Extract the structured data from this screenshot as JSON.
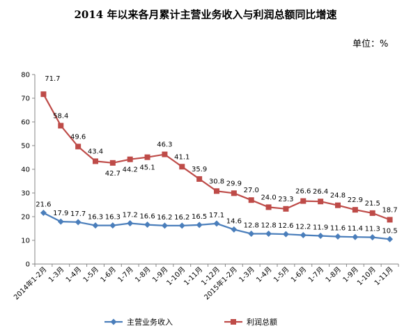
{
  "chart_data": {
    "type": "line",
    "title": "2014 年以来各月累计主营业务收入与利润总额同比增速",
    "unit": "单位：%",
    "xlabel": "",
    "ylabel": "",
    "ylim": [
      0,
      80
    ],
    "yticks": [
      "0",
      "10",
      "20",
      "30",
      "40",
      "50",
      "60",
      "70",
      "80"
    ],
    "grid": false,
    "legend_position": "bottom",
    "categories": [
      "2014年1-2月",
      "1-3月",
      "1-4月",
      "1-5月",
      "1-6月",
      "1-7月",
      "1-8月",
      "1-9月",
      "1-10月",
      "1-11月",
      "1-12月",
      "2015年1-2月",
      "1-3月",
      "1-4月",
      "1-5月",
      "1-6月",
      "1-7月",
      "1-8月",
      "1-9月",
      "1-10月",
      "1-11月"
    ],
    "series": [
      {
        "name": "主营业务收入",
        "color": "#4a7ebb",
        "marker": "diamond",
        "values": [
          21.6,
          17.9,
          17.7,
          16.3,
          16.3,
          17.2,
          16.6,
          16.2,
          16.2,
          16.5,
          17.1,
          14.6,
          12.8,
          12.8,
          12.6,
          12.2,
          11.9,
          11.6,
          11.4,
          11.3,
          10.5
        ],
        "labels": [
          "21.6",
          "17.9",
          "17.7",
          "16.3",
          "16.3",
          "17.2",
          "16.6",
          "16.2",
          "16.2",
          "16.5",
          "17.1",
          "14.6",
          "12.8",
          "12.8",
          "12.6",
          "12.2",
          "11.9",
          "11.6",
          "11.4",
          "11.3",
          "10.5"
        ]
      },
      {
        "name": "利润总额",
        "color": "#be4b48",
        "marker": "square",
        "values": [
          71.7,
          58.4,
          49.6,
          43.4,
          42.7,
          44.2,
          45.1,
          46.3,
          41.1,
          35.9,
          30.8,
          29.9,
          27.0,
          24.0,
          23.3,
          26.6,
          26.4,
          24.8,
          22.9,
          21.5,
          18.7
        ],
        "labels": [
          "71.7",
          "58.4",
          "49.6",
          "43.4",
          "42.7",
          "44.2",
          "45.1",
          "46.3",
          "41.1",
          "35.9",
          "30.8",
          "29.9",
          "27.0",
          "24.0",
          "23.3",
          "26.6",
          "26.4",
          "24.8",
          "22.9",
          "21.5",
          "18.7"
        ]
      }
    ]
  }
}
